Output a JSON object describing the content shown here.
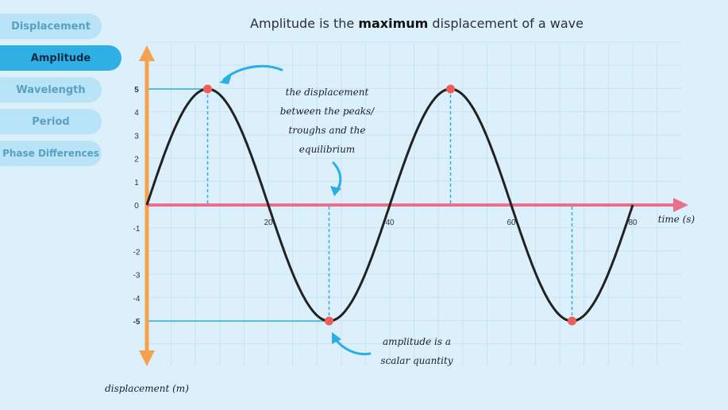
{
  "tabs": [
    {
      "label": "Displacement",
      "active": false
    },
    {
      "label": "Amplitude",
      "active": true
    },
    {
      "label": "Wavelength",
      "active": false
    },
    {
      "label": "Period",
      "active": false
    },
    {
      "label": "Phase Differences",
      "active": false
    }
  ],
  "title": {
    "pre": "Amplitude is the ",
    "bold": "maximum",
    "post": " displacement of a wave"
  },
  "annotations": {
    "peaks_note": [
      "the displacement",
      "between the peaks/",
      "troughs and the",
      "equilibrium"
    ],
    "scalar_note": [
      "amplitude is a",
      "scalar quantity"
    ]
  },
  "axes": {
    "x_label": "time (s)",
    "y_label": "displacement (m)"
  },
  "chart_data": {
    "type": "line",
    "y_ticks": [
      5,
      4,
      3,
      2,
      1,
      0,
      -1,
      -2,
      -3,
      -4,
      -5
    ],
    "x_ticks": [
      20,
      40,
      60,
      80
    ],
    "xlim": [
      0,
      80
    ],
    "ylim": [
      -5,
      5
    ],
    "amplitude": 5,
    "period": 40,
    "markers": [
      {
        "x": 10,
        "y": 5
      },
      {
        "x": 30,
        "y": -5
      },
      {
        "x": 50,
        "y": 5
      },
      {
        "x": 70,
        "y": -5
      }
    ],
    "colors": {
      "wave": "#222222",
      "x_axis": "#e8708a",
      "y_axis": "#f4a24c",
      "marker": "#f0605a",
      "guide": "#2aaee3"
    }
  }
}
